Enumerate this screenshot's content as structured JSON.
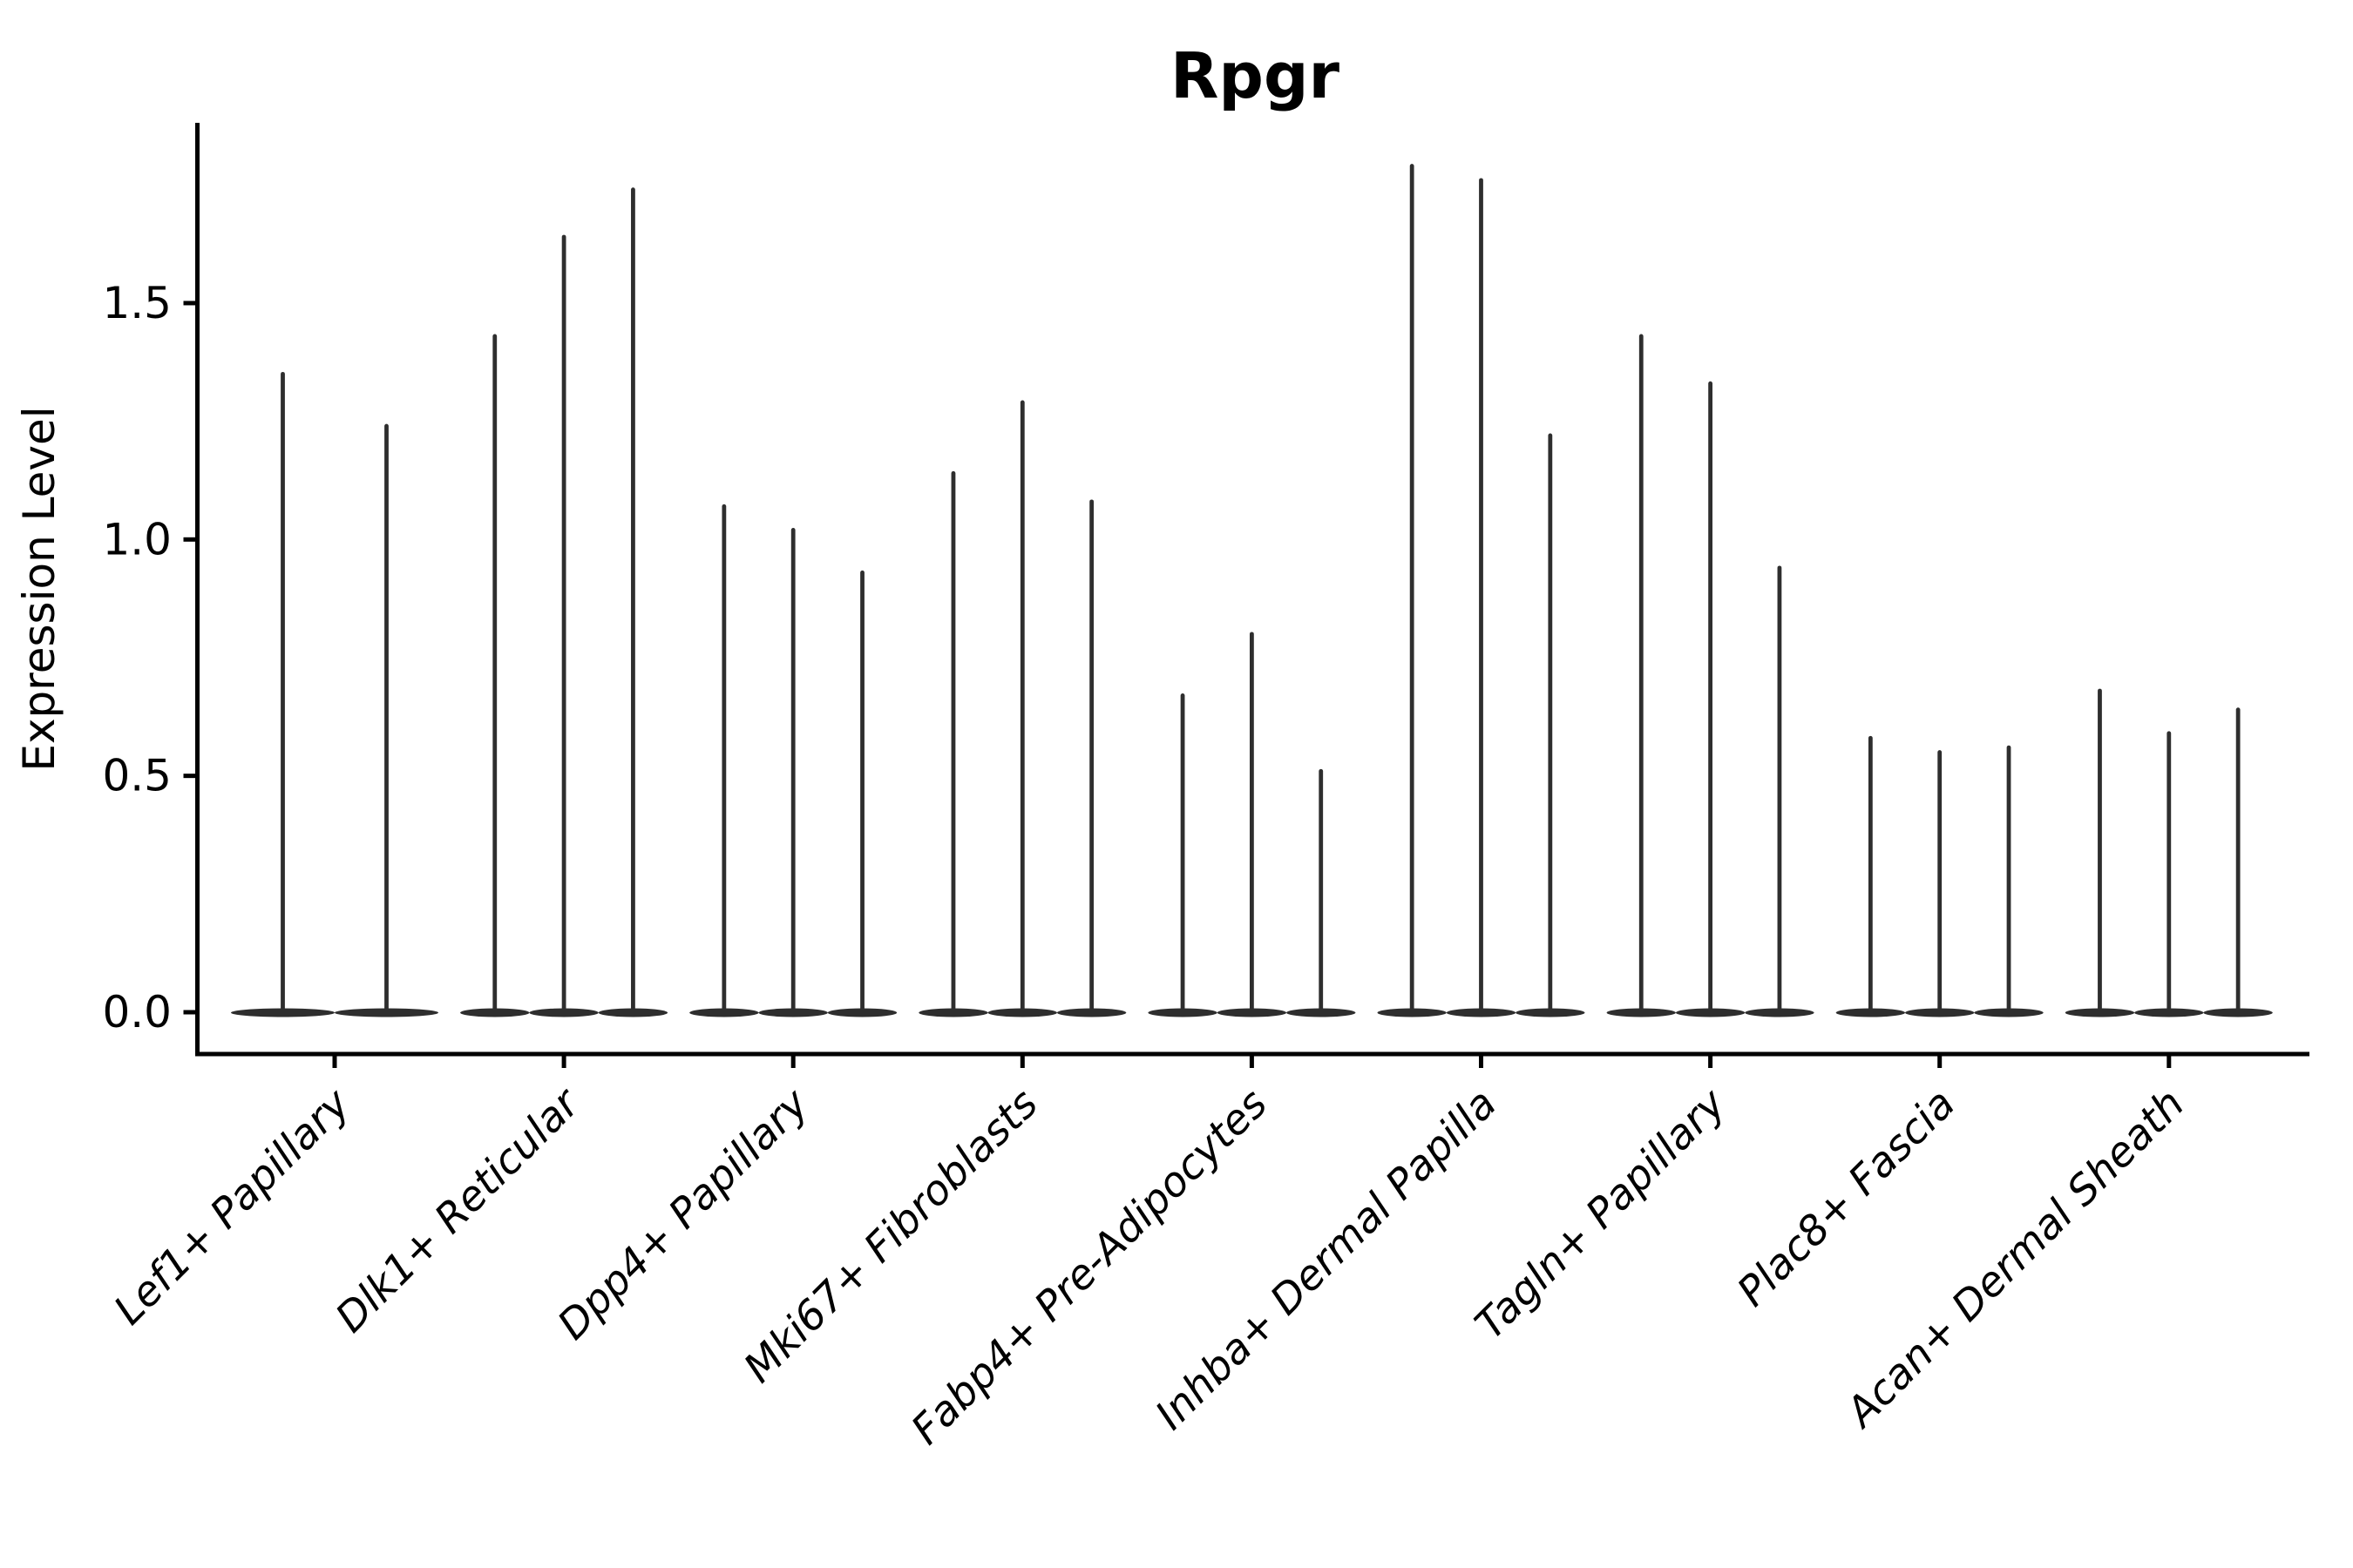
{
  "chart_data": {
    "type": "violin",
    "title": "Rpgr",
    "ylabel": "Expression Level",
    "xlabel": "",
    "legend": "none",
    "grid": false,
    "ylim": [
      -0.09,
      1.88
    ],
    "yticks": [
      "0.0",
      "0.5",
      "1.0",
      "1.5"
    ],
    "ytick_values": [
      0.0,
      0.5,
      1.0,
      1.5
    ],
    "categories": [
      "Lef1+ Papillary",
      "Dlk1+ Reticular",
      "Dpp4+ Papillary",
      "Mki67+ Fibroblasts",
      "Fabp4+ Pre-Adipocytes",
      "Inhba+ Dermal Papilla",
      "Tagln+ Papillary",
      "Plac8+ Fascia",
      "Acan+ Dermal Sheath"
    ],
    "groups": [
      {
        "category": "Lef1+ Papillary",
        "violins": [
          1.35,
          1.24
        ]
      },
      {
        "category": "Dlk1+ Reticular",
        "violins": [
          1.43,
          1.64,
          1.74
        ]
      },
      {
        "category": "Dpp4+ Papillary",
        "violins": [
          1.07,
          1.02,
          0.93
        ]
      },
      {
        "category": "Mki67+ Fibroblasts",
        "violins": [
          1.14,
          1.29,
          1.08
        ]
      },
      {
        "category": "Fabp4+ Pre-Adipocytes",
        "violins": [
          0.67,
          0.8,
          0.51
        ]
      },
      {
        "category": "Inhba+ Dermal Papilla",
        "violins": [
          1.79,
          1.76,
          1.22
        ]
      },
      {
        "category": "Tagln+ Papillary",
        "violins": [
          1.43,
          1.33,
          0.94
        ]
      },
      {
        "category": "Plac8+ Fascia",
        "violins": [
          0.58,
          0.55,
          0.56
        ]
      },
      {
        "category": "Acan+ Dermal Sheath",
        "violins": [
          0.68,
          0.59,
          0.64
        ]
      }
    ],
    "violin_shape_note": "extremely narrow violins: thin vertical spike up to max expression with wide flat lens-shaped base at 0",
    "colors": {
      "violin": "#2e2e2e",
      "axis": "#000000",
      "text": "#000000",
      "background": "#ffffff"
    }
  }
}
